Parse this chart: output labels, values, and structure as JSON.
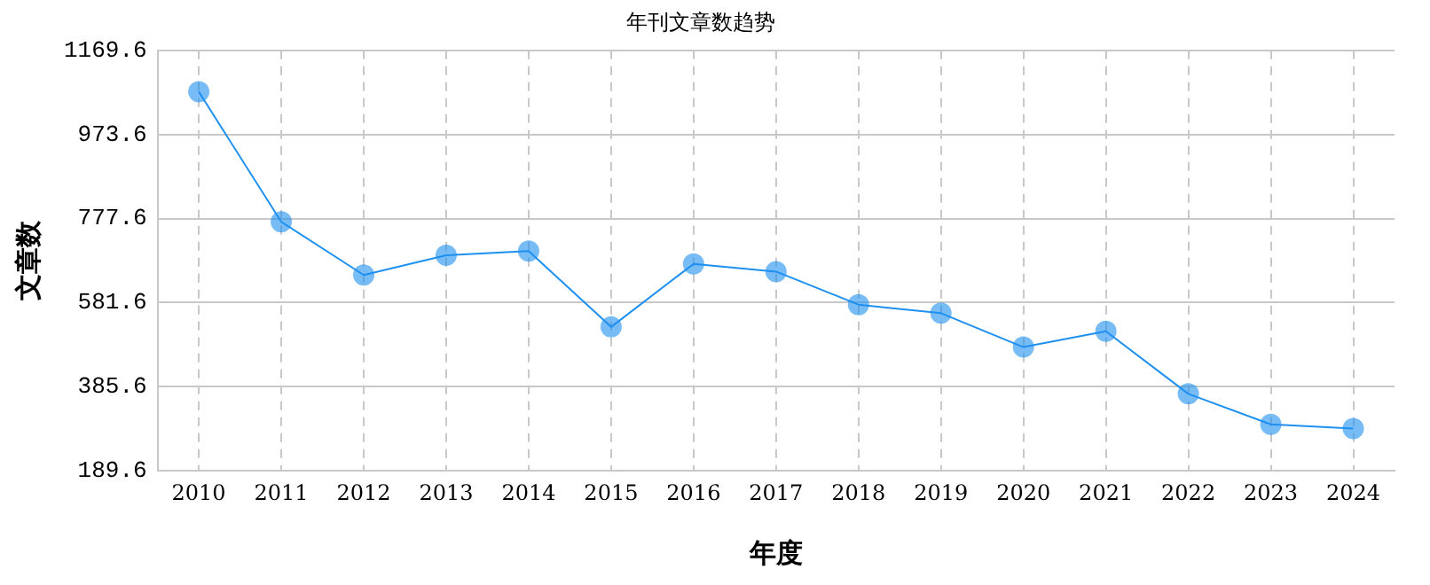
{
  "chart_data": {
    "type": "line",
    "title": "年刊文章数趋势",
    "xlabel": "年度",
    "ylabel": "文章数",
    "categories": [
      "2010",
      "2011",
      "2012",
      "2013",
      "2014",
      "2015",
      "2016",
      "2017",
      "2018",
      "2019",
      "2020",
      "2021",
      "2022",
      "2023",
      "2024"
    ],
    "series": [
      {
        "color": "#1e90f0",
        "values": [
          1073,
          770,
          646,
          692,
          702,
          525,
          672,
          654,
          577,
          557,
          478,
          515,
          369,
          298,
          288
        ]
      }
    ],
    "ylim": [
      189.6,
      1169.6
    ],
    "yticks": [
      189.6,
      385.6,
      581.6,
      777.6,
      973.6,
      1169.6
    ],
    "grid": true,
    "legend": false,
    "marker": "circle",
    "line_style": "solid"
  }
}
